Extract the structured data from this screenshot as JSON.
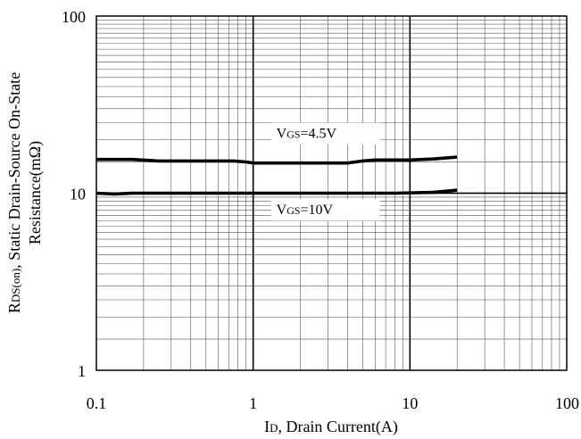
{
  "chart_data": {
    "type": "line",
    "xscale": "log",
    "yscale": "log",
    "xlim": [
      0.1,
      100
    ],
    "ylim": [
      1,
      100
    ],
    "grid": true,
    "x_ticks": [
      "0.1",
      "1",
      "10",
      "100"
    ],
    "y_ticks": [
      "1",
      "10",
      "100"
    ],
    "xlabel": {
      "main": "I",
      "sub": "D",
      "rest": ", Drain Current(A)"
    },
    "ylabel": {
      "line1_main": "R",
      "line1_sub": "DS(on)",
      "line1_rest": ", Static Drain-Source On-State",
      "line2": "Resistance(mΩ)"
    },
    "series": [
      {
        "label_main": "V",
        "label_sub": "GS",
        "label_rest": "=4.5V",
        "label_at": [
          0.9,
          20.5
        ],
        "x": [
          0.1,
          0.17,
          0.25,
          0.5,
          0.75,
          0.9,
          1.0,
          1.5,
          2.0,
          3.0,
          4.0,
          5.0,
          6.0,
          8.0,
          10.0,
          14.0,
          20.0
        ],
        "y": [
          15.5,
          15.5,
          15.2,
          15.2,
          15.2,
          15.0,
          14.8,
          14.8,
          14.8,
          14.8,
          14.8,
          15.2,
          15.4,
          15.4,
          15.4,
          15.6,
          16.0
        ]
      },
      {
        "label_main": "V",
        "label_sub": "GS",
        "label_rest": "=10V",
        "label_at": [
          0.9,
          7.6
        ],
        "x": [
          0.1,
          0.13,
          0.17,
          0.3,
          0.5,
          1.0,
          2.0,
          4.0,
          8.0,
          14.0,
          20.0
        ],
        "y": [
          10.0,
          9.9,
          10.0,
          10.0,
          10.0,
          10.0,
          10.0,
          10.0,
          10.0,
          10.1,
          10.4
        ]
      }
    ],
    "reference_line": {
      "y": 10,
      "x_range": [
        0.1,
        100
      ]
    },
    "colors": {
      "line": "#000000",
      "grid_minor": "#555555",
      "grid_major": "#000000"
    }
  }
}
